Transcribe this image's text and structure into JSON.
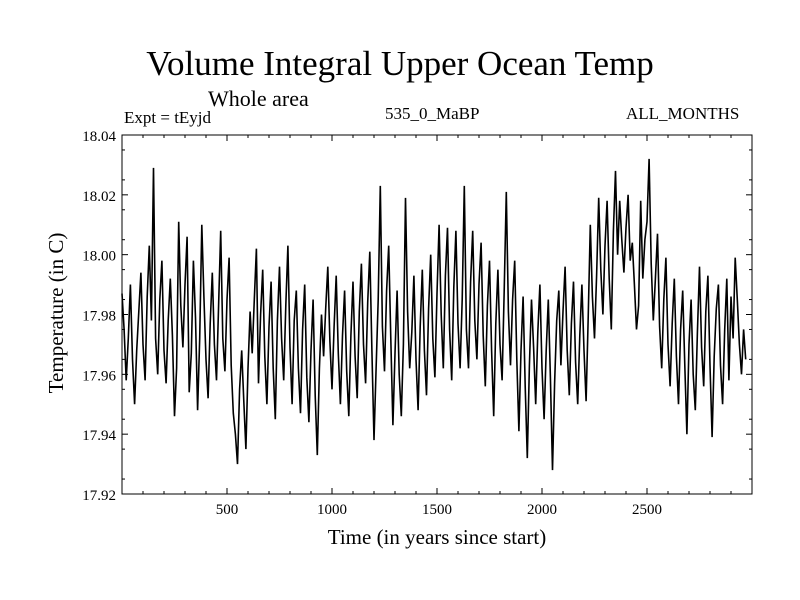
{
  "header": {
    "title": "Volume Integral Upper Ocean Temp",
    "subtitle": "Whole area",
    "experiment": "Expt = tEyjd",
    "run": "535_0_MaBP",
    "months": "ALL_MONTHS"
  },
  "chart_data": {
    "type": "line",
    "title": "Volume Integral Upper Ocean Temp",
    "subtitle": "Whole area",
    "xlabel": "Time (in years since start)",
    "ylabel": "Temperature (in C)",
    "xlim": [
      0,
      3000
    ],
    "ylim": [
      17.92,
      18.04
    ],
    "x_ticks": [
      500,
      1000,
      1500,
      2000,
      2500
    ],
    "x_tick_labels": [
      "500",
      "1000",
      "1500",
      "2000",
      "2500"
    ],
    "y_ticks": [
      17.92,
      17.94,
      17.96,
      17.98,
      18.0,
      18.02,
      18.04
    ],
    "y_tick_labels": [
      "17.92",
      "17.94",
      "17.96",
      "17.98",
      "18.00",
      "18.02",
      "18.04"
    ],
    "grid": false,
    "series": [
      {
        "name": "tEyjd",
        "x_start": 0,
        "x_step": 10,
        "values": [
          17.987,
          17.975,
          17.958,
          17.972,
          17.99,
          17.965,
          17.95,
          17.968,
          17.981,
          17.994,
          17.97,
          17.958,
          17.986,
          18.003,
          17.978,
          18.029,
          17.972,
          17.96,
          17.985,
          17.998,
          17.968,
          17.957,
          17.978,
          17.992,
          17.973,
          17.946,
          17.962,
          18.011,
          17.983,
          17.969,
          17.99,
          18.006,
          17.954,
          17.967,
          17.998,
          17.979,
          17.948,
          17.972,
          18.01,
          17.986,
          17.965,
          17.952,
          17.977,
          17.994,
          17.97,
          17.958,
          17.983,
          18.008,
          17.972,
          17.961,
          17.985,
          17.999,
          17.963,
          17.947,
          17.94,
          17.93,
          17.955,
          17.968,
          17.951,
          17.935,
          17.962,
          17.981,
          17.967,
          17.985,
          18.002,
          17.957,
          17.98,
          17.995,
          17.966,
          17.95,
          17.976,
          17.991,
          17.962,
          17.945,
          17.978,
          17.996,
          17.972,
          17.958,
          17.983,
          18.003,
          17.969,
          17.95,
          17.978,
          17.988,
          17.962,
          17.947,
          17.975,
          17.99,
          17.959,
          17.944,
          17.968,
          17.985,
          17.953,
          17.933,
          17.962,
          17.98,
          17.966,
          17.982,
          17.996,
          17.971,
          17.955,
          17.976,
          17.993,
          17.967,
          17.95,
          17.973,
          17.988,
          17.961,
          17.946,
          17.973,
          17.991,
          17.966,
          17.952,
          17.981,
          17.997,
          17.97,
          17.957,
          17.984,
          18.001,
          17.968,
          17.938,
          17.962,
          17.985,
          18.023,
          17.976,
          17.961,
          17.988,
          18.003,
          17.972,
          17.943,
          17.967,
          17.988,
          17.96,
          17.946,
          17.97,
          18.019,
          17.981,
          17.962,
          17.974,
          17.993,
          17.965,
          17.948,
          17.976,
          17.995,
          17.968,
          17.953,
          17.982,
          18.0,
          17.972,
          17.959,
          17.987,
          18.01,
          17.98,
          17.962,
          17.993,
          18.009,
          17.975,
          17.958,
          17.989,
          18.008,
          17.977,
          17.962,
          17.985,
          18.023,
          17.975,
          17.962,
          17.991,
          18.008,
          17.978,
          17.965,
          17.99,
          18.004,
          17.973,
          17.956,
          17.983,
          17.998,
          17.968,
          17.946,
          17.977,
          17.995,
          17.97,
          17.958,
          17.988,
          18.021,
          17.981,
          17.963,
          17.985,
          17.998,
          17.965,
          17.941,
          17.968,
          17.986,
          17.956,
          17.932,
          17.963,
          17.985,
          17.969,
          17.95,
          17.974,
          17.99,
          17.962,
          17.945,
          17.968,
          17.985,
          17.959,
          17.928,
          17.957,
          17.978,
          17.988,
          17.963,
          17.981,
          17.996,
          17.968,
          17.953,
          17.977,
          17.991,
          17.964,
          17.95,
          17.973,
          17.99,
          17.968,
          17.951,
          17.979,
          18.01,
          17.986,
          17.972,
          17.993,
          18.019,
          17.995,
          17.98,
          18.003,
          18.018,
          17.992,
          17.975,
          18.008,
          18.028,
          18.0,
          18.018,
          18.005,
          17.994,
          18.009,
          18.02,
          17.998,
          18.004,
          17.99,
          17.975,
          17.983,
          18.018,
          17.992,
          18.005,
          18.011,
          18.032,
          17.997,
          17.978,
          17.992,
          18.007,
          17.976,
          17.962,
          17.985,
          17.999,
          17.97,
          17.956,
          17.977,
          17.992,
          17.966,
          17.95,
          17.975,
          17.988,
          17.963,
          17.94,
          17.97,
          17.985,
          17.96,
          17.948,
          17.974,
          17.996,
          17.969,
          17.956,
          17.981,
          17.993,
          17.963,
          17.939,
          17.966,
          17.982,
          17.99,
          17.963,
          17.95,
          17.975,
          17.992,
          17.958,
          17.986,
          17.972,
          17.999,
          17.985,
          17.97,
          17.96,
          17.975,
          17.965
        ]
      }
    ]
  }
}
